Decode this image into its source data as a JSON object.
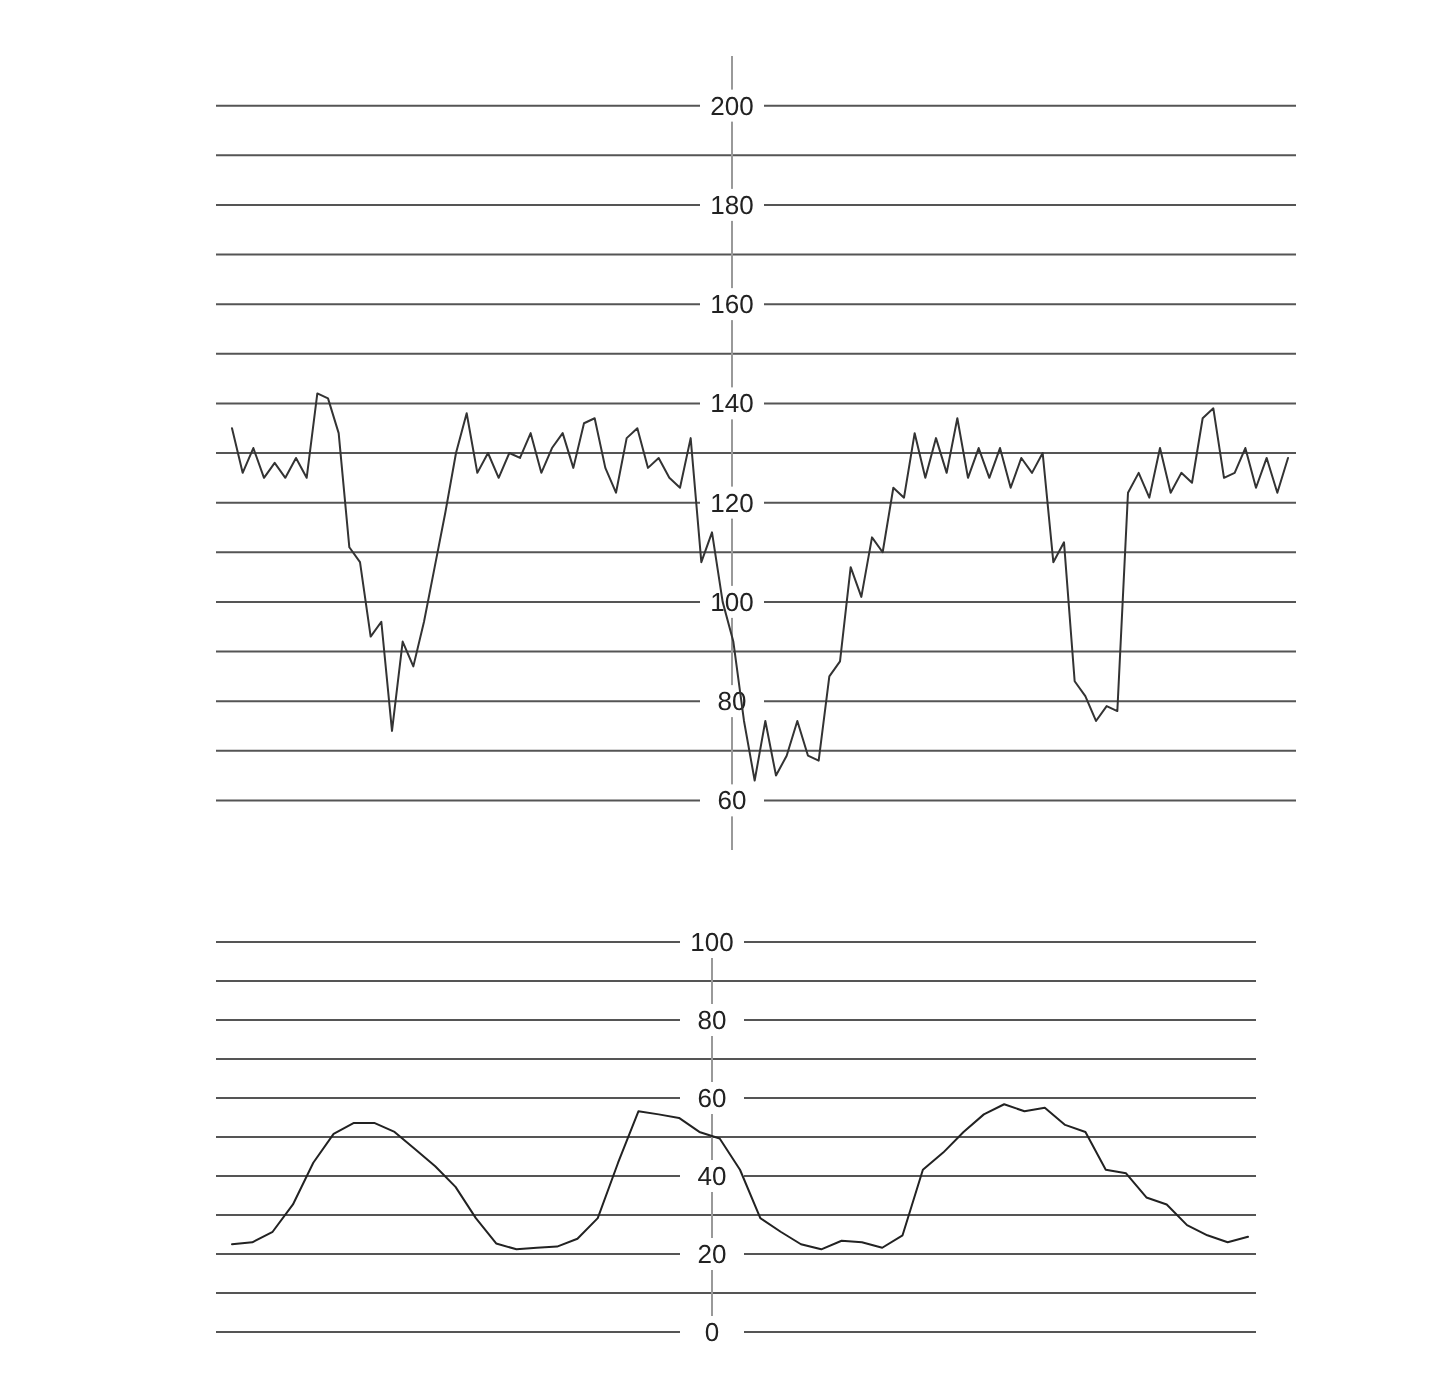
{
  "chart_data": [
    {
      "type": "line",
      "categories": [
        null,
        null,
        null,
        null,
        null,
        null,
        null,
        null,
        null,
        null,
        null,
        null,
        null,
        null,
        null,
        null,
        null,
        null,
        null,
        null,
        null,
        null,
        null,
        null,
        null,
        null,
        null,
        null,
        null,
        null,
        null,
        null,
        null,
        null,
        null,
        null,
        null,
        null,
        null,
        null,
        null,
        null,
        null,
        null,
        null,
        null,
        null,
        null,
        null,
        null,
        null,
        null,
        null,
        null,
        null,
        null,
        null,
        null,
        null,
        null,
        null,
        null,
        null,
        null,
        null,
        null,
        null,
        null,
        null,
        null,
        null,
        null,
        null,
        null,
        null,
        null,
        null,
        null,
        null,
        null,
        null,
        null,
        null,
        null,
        null,
        null,
        null,
        null,
        null,
        null,
        null,
        null,
        null,
        null,
        null,
        null,
        null,
        null,
        null,
        null
      ],
      "series": [
        {
          "color": "#333333",
          "values": [
            135,
            126,
            131,
            125,
            128,
            125,
            129,
            125,
            142,
            141,
            134,
            111,
            108,
            93,
            96,
            74,
            92,
            87,
            96,
            107,
            118,
            130,
            138,
            126,
            130,
            125,
            130,
            129,
            134,
            126,
            131,
            134,
            127,
            136,
            137,
            127,
            122,
            133,
            135,
            127,
            129,
            125,
            123,
            133,
            108,
            114,
            100,
            92,
            76,
            64,
            76,
            65,
            69,
            76,
            69,
            68,
            85,
            88,
            107,
            101,
            113,
            110,
            123,
            121,
            134,
            125,
            133,
            126,
            137,
            125,
            131,
            125,
            131,
            123,
            129,
            126,
            130,
            108,
            112,
            84,
            81,
            76,
            79,
            78,
            122,
            126,
            121,
            131,
            122,
            126,
            124,
            137,
            139,
            125,
            126,
            131,
            123,
            129,
            122,
            129
          ]
        }
      ],
      "ylim": [
        50,
        210
      ],
      "yticks": [
        60,
        {
          "value": 70,
          "label": null
        },
        80,
        {
          "value": 90,
          "label": null
        },
        100,
        {
          "value": 110,
          "label": null
        },
        120,
        {
          "value": 130,
          "label": null
        },
        140,
        {
          "value": 150,
          "label": null
        },
        160,
        {
          "value": 170,
          "label": null
        },
        180,
        {
          "value": 190,
          "label": null
        },
        200
      ],
      "grid": "y",
      "tick_labels": "y",
      "marker": "none",
      "line_style": "solid"
    },
    {
      "type": "line",
      "categories": [
        null,
        null,
        null,
        null,
        null,
        null,
        null,
        null,
        null,
        null,
        null,
        null,
        null,
        null,
        null,
        null,
        null,
        null,
        null,
        null,
        null,
        null,
        null,
        null,
        null,
        null,
        null,
        null,
        null,
        null,
        null,
        null,
        null,
        null,
        null,
        null,
        null,
        null,
        null,
        null,
        null,
        null,
        null,
        null,
        null,
        null,
        null,
        null,
        null,
        null,
        null
      ],
      "series": [
        {
          "color": "#222222",
          "values": [
            22.5,
            23,
            25.7,
            32.7,
            43.4,
            50.8,
            53.6,
            53.6,
            51.3,
            46.9,
            42.5,
            37.2,
            29.2,
            22.7,
            21.2,
            21.6,
            21.9,
            23.9,
            29.2,
            43.4,
            56.6,
            55.8,
            54.9,
            51.3,
            49.6,
            41.6,
            29.2,
            25.7,
            22.5,
            21.2,
            23.4,
            23,
            21.6,
            24.8,
            41.6,
            46,
            51.3,
            55.8,
            58.4,
            56.6,
            57.5,
            53.1,
            51.3,
            41.6,
            40.7,
            34.5,
            32.7,
            27.4,
            24.8,
            23,
            24.4
          ]
        }
      ],
      "ylim": [
        0,
        100
      ],
      "yticks": [
        0,
        {
          "value": 10,
          "label": null
        },
        20,
        {
          "value": 30,
          "label": null
        },
        40,
        {
          "value": 50,
          "label": null
        },
        60,
        {
          "value": 70,
          "label": null
        },
        80,
        {
          "value": 90,
          "label": null
        },
        100
      ],
      "grid": "y",
      "tick_labels": "y",
      "marker": "none",
      "line_style": "solid"
    }
  ]
}
